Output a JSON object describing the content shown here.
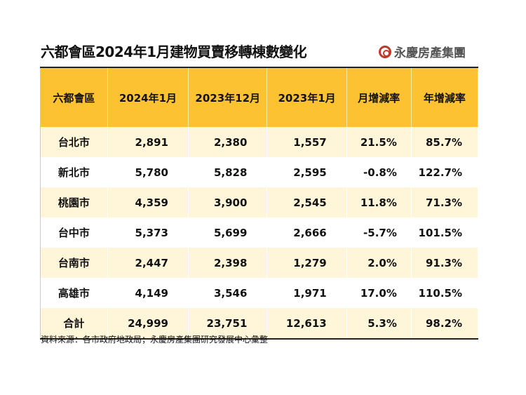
{
  "title": "六都會區2024年1月建物買賣移轉棟數變化",
  "logo": "永慶房產集團",
  "headers": [
    "六都會區",
    "2024年1月",
    "2023年12月",
    "2023年1月",
    "月增減率",
    "年增減率"
  ],
  "rows": [
    [
      "台北市",
      "2,891",
      "2,380",
      "1,557",
      "21.5%",
      "85.7%"
    ],
    [
      "新北市",
      "5,780",
      "5,828",
      "2,595",
      "-0.8%",
      "122.7%"
    ],
    [
      "桃園市",
      "4,359",
      "3,900",
      "2,545",
      "11.8%",
      "71.3%"
    ],
    [
      "台中市",
      "5,373",
      "5,699",
      "2,666",
      "-5.7%",
      "101.5%"
    ],
    [
      "台南市",
      "2,447",
      "2,398",
      "1,279",
      "2.0%",
      "91.3%"
    ],
    [
      "高雄市",
      "4,149",
      "3,546",
      "1,971",
      "17.0%",
      "110.5%"
    ],
    [
      "合計",
      "24,999",
      "23,751",
      "12,613",
      "5.3%",
      "98.2%"
    ]
  ],
  "source": "資料來源：各市政府地政局；永慶房產集團研究發展中心彙整",
  "colors": {
    "header": "#fcc232",
    "stripe": "#fff5d8",
    "logo_red": "#c0392b"
  }
}
